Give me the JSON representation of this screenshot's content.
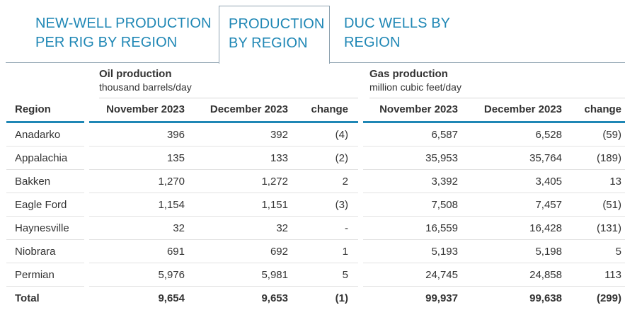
{
  "tabs": [
    {
      "line1": "NEW-WELL PRODUCTION",
      "line2": "PER RIG BY REGION",
      "active": false
    },
    {
      "line1": "PRODUCTION",
      "line2": "BY REGION",
      "active": true
    },
    {
      "line1": "DUC WELLS BY",
      "line2": "REGION",
      "active": false
    }
  ],
  "table": {
    "oil_group": {
      "title": "Oil production",
      "unit": "thousand barrels/day"
    },
    "gas_group": {
      "title": "Gas production",
      "unit": "million cubic feet/day"
    },
    "columns": [
      "Region",
      "November 2023",
      "December 2023",
      "change",
      "November 2023",
      "December 2023",
      "change"
    ],
    "rows": [
      {
        "region": "Anadarko",
        "oil_nov": "396",
        "oil_dec": "392",
        "oil_change": "(4)",
        "gas_nov": "6,587",
        "gas_dec": "6,528",
        "gas_change": "(59)"
      },
      {
        "region": "Appalachia",
        "oil_nov": "135",
        "oil_dec": "133",
        "oil_change": "(2)",
        "gas_nov": "35,953",
        "gas_dec": "35,764",
        "gas_change": "(189)"
      },
      {
        "region": "Bakken",
        "oil_nov": "1,270",
        "oil_dec": "1,272",
        "oil_change": "2",
        "gas_nov": "3,392",
        "gas_dec": "3,405",
        "gas_change": "13"
      },
      {
        "region": "Eagle Ford",
        "oil_nov": "1,154",
        "oil_dec": "1,151",
        "oil_change": "(3)",
        "gas_nov": "7,508",
        "gas_dec": "7,457",
        "gas_change": "(51)"
      },
      {
        "region": "Haynesville",
        "oil_nov": "32",
        "oil_dec": "32",
        "oil_change": "-",
        "gas_nov": "16,559",
        "gas_dec": "16,428",
        "gas_change": "(131)"
      },
      {
        "region": "Niobrara",
        "oil_nov": "691",
        "oil_dec": "692",
        "oil_change": "1",
        "gas_nov": "5,193",
        "gas_dec": "5,198",
        "gas_change": "5"
      },
      {
        "region": "Permian",
        "oil_nov": "5,976",
        "oil_dec": "5,981",
        "oil_change": "5",
        "gas_nov": "24,745",
        "gas_dec": "24,858",
        "gas_change": "113"
      }
    ],
    "total": {
      "region": "Total",
      "oil_nov": "9,654",
      "oil_dec": "9,653",
      "oil_change": "(1)",
      "gas_nov": "99,937",
      "gas_dec": "99,638",
      "gas_change": "(299)"
    }
  },
  "colors": {
    "accent": "#1f87b5",
    "text": "#333333",
    "divider": "#d9d9d9"
  }
}
